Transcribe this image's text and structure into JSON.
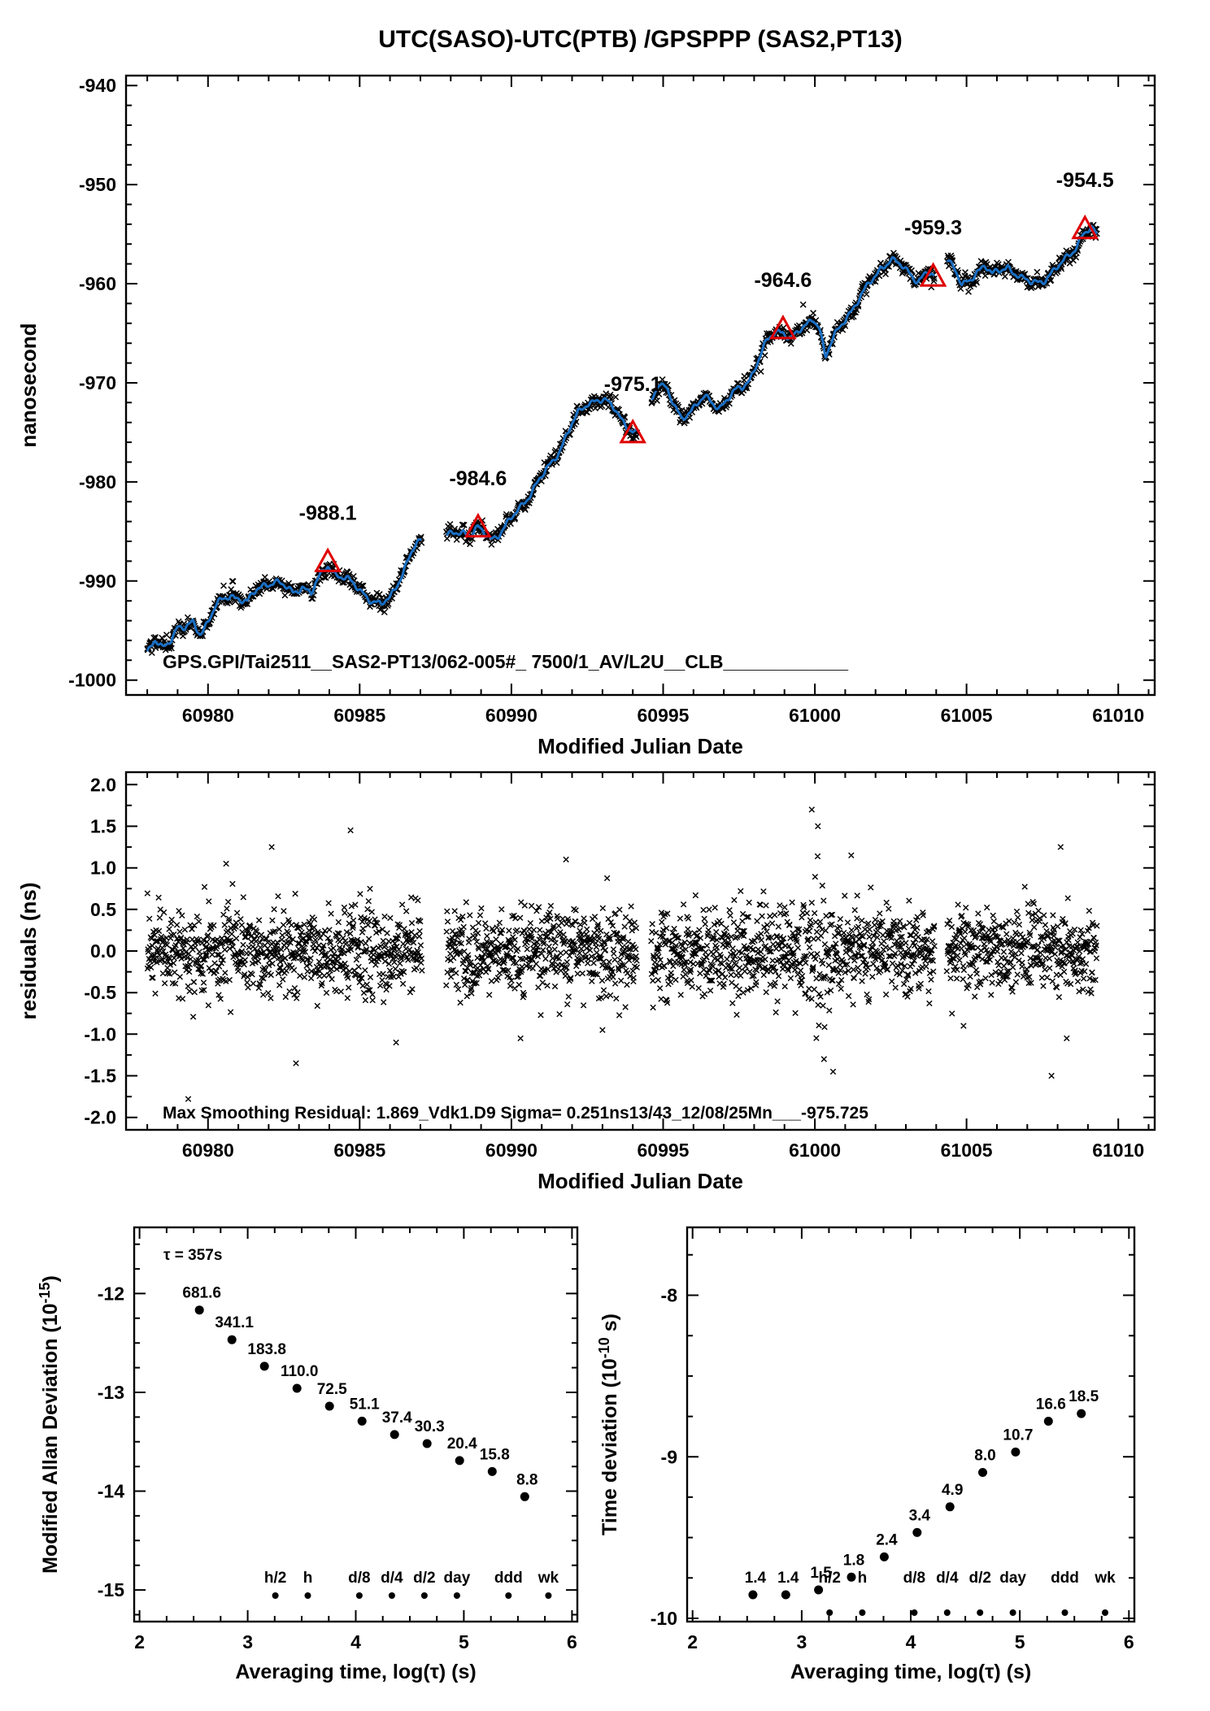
{
  "colors": {
    "blue": "#1a6fc4",
    "red": "#e00000",
    "axis": "#000000",
    "background": "#ffffff"
  },
  "chart_data": [
    {
      "id": "phase",
      "type": "line",
      "title": "UTC(SASO)-UTC(PTB)  /GPSPPP  (SAS2,PT13)",
      "xlabel": "Modified Julian Date",
      "ylabel": "nanosecond",
      "footer": "GPS.GPI/Tai2511__SAS2-PT13/062-005#_  7500/1_AV/L2U__CLB____________",
      "xlim": [
        60977.3,
        61011.2
      ],
      "ylim": [
        -1001.5,
        -939.0
      ],
      "xticks": [
        60980,
        60985,
        60990,
        60995,
        61000,
        61005,
        61010
      ],
      "xtick_labels": [
        "60980",
        "60985",
        "60990",
        "60995",
        "61000",
        "61005",
        "61010"
      ],
      "yticks": [
        -1000,
        -990,
        -980,
        -970,
        -960,
        -950,
        -940
      ],
      "ytick_labels": [
        "-1000",
        "-990",
        "-980",
        "-970",
        "-960",
        "-950",
        "-940"
      ],
      "xminor": 1,
      "yminor": 2,
      "scatter_sigma": 0.33,
      "gaps": [
        [
          60987.05,
          60987.85
        ],
        [
          60994.15,
          60994.6
        ],
        [
          61003.95,
          61004.35
        ]
      ],
      "steering_points": [
        {
          "x": 60983.95,
          "y": -988.1,
          "label": "-988.1"
        },
        {
          "x": 60988.9,
          "y": -984.6,
          "label": "-984.6"
        },
        {
          "x": 60994.0,
          "y": -975.1,
          "label": "-975.1"
        },
        {
          "x": 60998.95,
          "y": -964.6,
          "label": "-964.6"
        },
        {
          "x": 61003.9,
          "y": -959.3,
          "label": "-959.3"
        },
        {
          "x": 61008.9,
          "y": -954.5,
          "label": "-954.5"
        }
      ],
      "keypoints": [
        [
          60978.0,
          -997.3
        ],
        [
          60978.25,
          -996.2
        ],
        [
          60978.5,
          -996.8
        ],
        [
          60978.75,
          -995.8
        ],
        [
          60979.0,
          -994.6
        ],
        [
          60979.25,
          -994.9
        ],
        [
          60979.5,
          -994.3
        ],
        [
          60979.75,
          -995.2
        ],
        [
          60980.0,
          -994.0
        ],
        [
          60980.25,
          -992.6
        ],
        [
          60980.5,
          -992.0
        ],
        [
          60980.75,
          -991.4
        ],
        [
          60981.0,
          -991.6
        ],
        [
          60981.3,
          -992.2
        ],
        [
          60981.6,
          -991.0
        ],
        [
          60981.9,
          -990.2
        ],
        [
          60982.2,
          -990.0
        ],
        [
          60982.5,
          -990.6
        ],
        [
          60982.8,
          -991.2
        ],
        [
          60983.1,
          -990.4
        ],
        [
          60983.4,
          -991.3
        ],
        [
          60983.7,
          -989.6
        ],
        [
          60983.95,
          -988.3
        ],
        [
          60984.2,
          -989.2
        ],
        [
          60984.5,
          -989.8
        ],
        [
          60984.8,
          -990.4
        ],
        [
          60985.1,
          -991.0
        ],
        [
          60985.4,
          -992.0
        ],
        [
          60985.7,
          -992.6
        ],
        [
          60986.0,
          -991.6
        ],
        [
          60986.3,
          -989.8
        ],
        [
          60986.6,
          -988.0
        ],
        [
          60986.85,
          -986.4
        ],
        [
          60987.05,
          -985.9
        ],
        [
          60987.9,
          -985.6
        ],
        [
          60988.15,
          -985.0
        ],
        [
          60988.4,
          -984.9
        ],
        [
          60988.65,
          -985.4
        ],
        [
          60988.9,
          -984.8
        ],
        [
          60989.1,
          -985.2
        ],
        [
          60989.35,
          -985.6
        ],
        [
          60989.6,
          -985.2
        ],
        [
          60989.85,
          -984.4
        ],
        [
          60990.1,
          -983.4
        ],
        [
          60990.4,
          -982.0
        ],
        [
          60990.7,
          -980.8
        ],
        [
          60991.0,
          -979.6
        ],
        [
          60991.3,
          -978.2
        ],
        [
          60991.6,
          -976.6
        ],
        [
          60991.9,
          -974.8
        ],
        [
          60992.2,
          -973.2
        ],
        [
          60992.5,
          -972.0
        ],
        [
          60992.8,
          -971.6
        ],
        [
          60993.1,
          -972.0
        ],
        [
          60993.4,
          -972.6
        ],
        [
          60993.7,
          -973.8
        ],
        [
          60994.0,
          -975.0
        ],
        [
          60994.15,
          -975.3
        ],
        [
          60994.6,
          -971.8
        ],
        [
          60994.85,
          -969.8
        ],
        [
          60995.1,
          -970.6
        ],
        [
          60995.35,
          -972.4
        ],
        [
          60995.6,
          -973.6
        ],
        [
          60995.85,
          -972.8
        ],
        [
          60996.1,
          -972.2
        ],
        [
          60996.35,
          -971.6
        ],
        [
          60996.6,
          -972.0
        ],
        [
          60996.85,
          -972.4
        ],
        [
          60997.1,
          -971.6
        ],
        [
          60997.35,
          -971.0
        ],
        [
          60997.6,
          -970.6
        ],
        [
          60997.85,
          -969.6
        ],
        [
          60998.1,
          -967.8
        ],
        [
          60998.4,
          -966.0
        ],
        [
          60998.7,
          -965.0
        ],
        [
          60998.95,
          -964.7
        ],
        [
          60999.2,
          -965.4
        ],
        [
          60999.45,
          -965.0
        ],
        [
          60999.7,
          -964.4
        ],
        [
          60999.95,
          -963.4
        ],
        [
          61000.15,
          -964.2
        ],
        [
          61000.35,
          -967.4
        ],
        [
          61000.55,
          -966.0
        ],
        [
          61000.8,
          -964.6
        ],
        [
          61001.05,
          -963.2
        ],
        [
          61001.3,
          -962.2
        ],
        [
          61001.6,
          -961.0
        ],
        [
          61001.9,
          -959.6
        ],
        [
          61002.2,
          -958.2
        ],
        [
          61002.5,
          -957.6
        ],
        [
          61002.8,
          -958.2
        ],
        [
          61003.1,
          -958.8
        ],
        [
          61003.4,
          -959.6
        ],
        [
          61003.7,
          -959.0
        ],
        [
          61003.95,
          -959.4
        ],
        [
          61004.35,
          -957.2
        ],
        [
          61004.6,
          -958.4
        ],
        [
          61004.85,
          -960.4
        ],
        [
          61005.1,
          -959.8
        ],
        [
          61005.35,
          -958.6
        ],
        [
          61005.6,
          -958.0
        ],
        [
          61005.85,
          -959.2
        ],
        [
          61006.1,
          -958.8
        ],
        [
          61006.35,
          -958.2
        ],
        [
          61006.6,
          -958.8
        ],
        [
          61006.85,
          -959.6
        ],
        [
          61007.1,
          -960.0
        ],
        [
          61007.35,
          -959.8
        ],
        [
          61007.6,
          -959.4
        ],
        [
          61007.85,
          -958.8
        ],
        [
          61008.1,
          -958.2
        ],
        [
          61008.35,
          -957.2
        ],
        [
          61008.6,
          -956.2
        ],
        [
          61008.85,
          -954.9
        ],
        [
          61009.1,
          -954.6
        ],
        [
          61009.3,
          -955.2
        ]
      ]
    },
    {
      "id": "residuals",
      "type": "scatter",
      "xlabel": "Modified Julian Date",
      "ylabel": "residuals (ns)",
      "footer": "Max Smoothing Residual: 1.869_Vdk1.D9  Sigma= 0.251ns13/43_12/08/25Mn___-975.725",
      "xlim": [
        60977.3,
        61011.2
      ],
      "ylim": [
        -2.15,
        2.15
      ],
      "xticks": [
        60980,
        60985,
        60990,
        60995,
        61000,
        61005,
        61010
      ],
      "xtick_labels": [
        "60980",
        "60985",
        "60990",
        "60995",
        "61000",
        "61005",
        "61010"
      ],
      "yticks": [
        -2.0,
        -1.5,
        -1.0,
        -0.5,
        0.0,
        0.5,
        1.0,
        1.5,
        2.0
      ],
      "ytick_labels": [
        "-2.0",
        "-1.5",
        "-1.0",
        "-0.5",
        "0.0",
        "0.5",
        "1.0",
        "1.5",
        "2.0"
      ],
      "xminor": 1,
      "yminor": 0.25,
      "sigma": 0.251,
      "xrange": [
        60978.0,
        61009.3
      ],
      "gaps": [
        [
          60987.05,
          60987.85
        ],
        [
          60994.15,
          60994.6
        ],
        [
          61003.95,
          61004.35
        ]
      ],
      "outliers": [
        [
          60979.35,
          -1.78
        ],
        [
          60980.6,
          1.05
        ],
        [
          60982.1,
          1.25
        ],
        [
          60982.9,
          -1.35
        ],
        [
          60984.7,
          1.45
        ],
        [
          60986.2,
          -1.1
        ],
        [
          60990.3,
          -1.05
        ],
        [
          60991.8,
          1.1
        ],
        [
          60993.0,
          -0.95
        ],
        [
          60999.9,
          1.7
        ],
        [
          61000.1,
          1.5
        ],
        [
          61000.3,
          -1.3
        ],
        [
          61000.6,
          -1.45
        ],
        [
          61001.2,
          1.15
        ],
        [
          61004.9,
          -0.9
        ],
        [
          61007.8,
          -1.5
        ],
        [
          61008.1,
          1.25
        ],
        [
          61008.3,
          -1.05
        ]
      ]
    },
    {
      "id": "mdev",
      "type": "scatter",
      "xlabel": "Averaging time, log(τ) (s)",
      "ylabel_parts": [
        "Modified Allan Deviation (10",
        "-15",
        ")"
      ],
      "tau_note": "τ = 357s",
      "xlim": [
        1.95,
        6.05
      ],
      "ylim": [
        -15.32,
        -11.33
      ],
      "xticks": [
        2,
        3,
        4,
        5,
        6
      ],
      "xtick_labels": [
        "2",
        "3",
        "4",
        "5",
        "6"
      ],
      "yticks": [
        -12,
        -13,
        -14,
        -15
      ],
      "ytick_labels": [
        "-12",
        "-13",
        "-14",
        "-15"
      ],
      "xminor": 0.25,
      "yminor": 0.25,
      "exp": -15,
      "x": [
        2.553,
        2.854,
        3.155,
        3.456,
        3.757,
        4.058,
        4.359,
        4.66,
        4.961,
        5.262,
        5.563
      ],
      "values": [
        681.6,
        341.1,
        183.8,
        110.0,
        72.5,
        51.1,
        37.4,
        30.3,
        20.4,
        15.8,
        8.8
      ],
      "labels": [
        "681.6",
        "341.1",
        "183.8",
        "110.0",
        "72.5",
        "51.1",
        "37.4",
        "30.3",
        "20.4",
        "15.8",
        "8.8"
      ],
      "time_markers": [
        {
          "label": "h/2",
          "x": 3.256
        },
        {
          "label": "h",
          "x": 3.556
        },
        {
          "label": "d/8",
          "x": 4.033
        },
        {
          "label": "d/4",
          "x": 4.334
        },
        {
          "label": "d/2",
          "x": 4.635
        },
        {
          "label": "day",
          "x": 4.936
        },
        {
          "label": "ddd",
          "x": 5.413
        },
        {
          "label": "wk",
          "x": 5.782
        }
      ]
    },
    {
      "id": "tdev",
      "type": "scatter",
      "xlabel": "Averaging time, log(τ) (s)",
      "ylabel_parts": [
        "Time deviation (10",
        "-10",
        " s)"
      ],
      "xlim": [
        1.95,
        6.05
      ],
      "ylim": [
        -10.02,
        -7.58
      ],
      "xticks": [
        2,
        3,
        4,
        5,
        6
      ],
      "xtick_labels": [
        "2",
        "3",
        "4",
        "5",
        "6"
      ],
      "yticks": [
        -8,
        -9,
        -10
      ],
      "ytick_labels": [
        "-8",
        "-9",
        "-10"
      ],
      "xminor": 0.25,
      "yminor": 0.25,
      "exp": -10,
      "x": [
        2.553,
        2.854,
        3.155,
        3.456,
        3.757,
        4.058,
        4.359,
        4.66,
        4.961,
        5.262,
        5.563
      ],
      "values": [
        1.4,
        1.4,
        1.5,
        1.8,
        2.4,
        3.4,
        4.9,
        8.0,
        10.7,
        16.6,
        18.5
      ],
      "labels": [
        "1.4",
        "1.4",
        "1.5",
        "1.8",
        "2.4",
        "3.4",
        "4.9",
        "8.0",
        "10.7",
        "16.6",
        "18.5"
      ],
      "time_markers": [
        {
          "label": "h/2",
          "x": 3.256
        },
        {
          "label": "h",
          "x": 3.556
        },
        {
          "label": "d/8",
          "x": 4.033
        },
        {
          "label": "d/4",
          "x": 4.334
        },
        {
          "label": "d/2",
          "x": 4.635
        },
        {
          "label": "day",
          "x": 4.936
        },
        {
          "label": "ddd",
          "x": 5.413
        },
        {
          "label": "wk",
          "x": 5.782
        }
      ]
    }
  ]
}
